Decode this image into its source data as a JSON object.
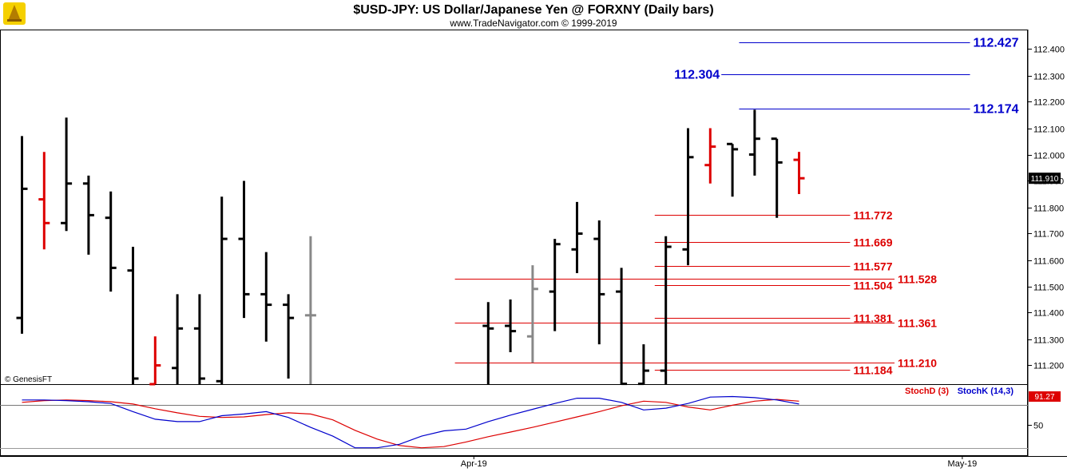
{
  "header": {
    "title": "$USD-JPY:  US Dollar/Japanese Yen @ FORXNY  (Daily bars)",
    "subtitle": "www.TradeNavigator.com © 1999-2019"
  },
  "watermark": "© GenesisFT",
  "colors": {
    "up_bar": "#000000",
    "down_bar": "#dd0000",
    "neutral_bar": "#888888",
    "blue_level": "#0000cc",
    "red_level": "#dd0000",
    "stoch_d": "#dd0000",
    "stoch_k": "#0000cc"
  },
  "chart_data": {
    "type": "ohlc",
    "title": "$USD-JPY:  US Dollar/Japanese Yen @ FORXNY  (Daily bars)",
    "ylim": [
      111.1,
      112.46
    ],
    "y_ticks": [
      "111.200",
      "111.300",
      "111.400",
      "111.500",
      "111.600",
      "111.700",
      "111.800",
      "111.900",
      "112.000",
      "112.100",
      "112.200",
      "112.300",
      "112.400"
    ],
    "x_ticks": [
      {
        "label": "Apr-19",
        "bar": 21
      },
      {
        "label": "May-19",
        "bar": 43
      }
    ],
    "last_price": "111.910",
    "bars": [
      {
        "x": 0,
        "o": 111.38,
        "h": 112.07,
        "l": 111.32,
        "c": 111.87,
        "color": "up"
      },
      {
        "x": 1,
        "o": 111.83,
        "h": 112.01,
        "l": 111.64,
        "c": 111.74,
        "color": "down"
      },
      {
        "x": 2,
        "o": 111.74,
        "h": 112.14,
        "l": 111.71,
        "c": 111.89,
        "color": "up"
      },
      {
        "x": 3,
        "o": 111.89,
        "h": 111.92,
        "l": 111.62,
        "c": 111.77,
        "color": "up"
      },
      {
        "x": 4,
        "o": 111.76,
        "h": 111.86,
        "l": 111.48,
        "c": 111.57,
        "color": "up"
      },
      {
        "x": 5,
        "o": 111.56,
        "h": 111.65,
        "l": 111.1,
        "c": 111.15,
        "color": "up"
      },
      {
        "x": 6,
        "o": 111.12,
        "h": 111.31,
        "l": 111.1,
        "c": 111.2,
        "color": "down"
      },
      {
        "x": 7,
        "o": 111.19,
        "h": 111.47,
        "l": 111.1,
        "c": 111.34,
        "color": "up"
      },
      {
        "x": 8,
        "o": 111.34,
        "h": 111.47,
        "l": 111.1,
        "c": 111.15,
        "color": "up"
      },
      {
        "x": 9,
        "o": 111.14,
        "h": 111.84,
        "l": 111.1,
        "c": 111.68,
        "color": "up"
      },
      {
        "x": 10,
        "o": 111.68,
        "h": 111.9,
        "l": 111.38,
        "c": 111.47,
        "color": "up"
      },
      {
        "x": 11,
        "o": 111.47,
        "h": 111.63,
        "l": 111.29,
        "c": 111.43,
        "color": "up"
      },
      {
        "x": 12,
        "o": 111.43,
        "h": 111.47,
        "l": 111.15,
        "c": 111.38,
        "color": "up"
      },
      {
        "x": 13,
        "o": 111.39,
        "h": 111.69,
        "l": 111.1,
        "c": 111.39,
        "color": "neutral"
      },
      {
        "x": 21,
        "o": 111.35,
        "h": 111.44,
        "l": 111.1,
        "c": 111.34,
        "color": "up"
      },
      {
        "x": 22,
        "o": 111.35,
        "h": 111.45,
        "l": 111.25,
        "c": 111.33,
        "color": "up"
      },
      {
        "x": 23,
        "o": 111.31,
        "h": 111.58,
        "l": 111.21,
        "c": 111.49,
        "color": "neutral"
      },
      {
        "x": 24,
        "o": 111.48,
        "h": 111.68,
        "l": 111.33,
        "c": 111.66,
        "color": "up"
      },
      {
        "x": 25,
        "o": 111.64,
        "h": 111.82,
        "l": 111.55,
        "c": 111.7,
        "color": "up"
      },
      {
        "x": 26,
        "o": 111.68,
        "h": 111.75,
        "l": 111.28,
        "c": 111.47,
        "color": "up"
      },
      {
        "x": 27,
        "o": 111.48,
        "h": 111.57,
        "l": 111.1,
        "c": 111.13,
        "color": "up"
      },
      {
        "x": 28,
        "o": 111.13,
        "h": 111.28,
        "l": 111.1,
        "c": 111.18,
        "color": "up"
      },
      {
        "x": 29,
        "o": 111.18,
        "h": 111.69,
        "l": 111.1,
        "c": 111.65,
        "color": "up"
      },
      {
        "x": 30,
        "o": 111.64,
        "h": 112.1,
        "l": 111.58,
        "c": 111.99,
        "color": "up"
      },
      {
        "x": 31,
        "o": 111.96,
        "h": 112.1,
        "l": 111.89,
        "c": 112.03,
        "color": "down"
      },
      {
        "x": 32,
        "o": 112.04,
        "h": 112.04,
        "l": 111.84,
        "c": 112.02,
        "color": "up"
      },
      {
        "x": 33,
        "o": 112.0,
        "h": 112.17,
        "l": 111.92,
        "c": 112.06,
        "color": "up"
      },
      {
        "x": 34,
        "o": 112.06,
        "h": 112.06,
        "l": 111.76,
        "c": 111.97,
        "color": "up"
      },
      {
        "x": 35,
        "o": 111.98,
        "h": 112.01,
        "l": 111.85,
        "c": 111.91,
        "color": "down"
      }
    ],
    "levels": [
      {
        "label": "112.427",
        "value": 112.427,
        "color": "blue",
        "x_from_bar": 32.3,
        "x_to_bar": 42.7,
        "label_side": "right"
      },
      {
        "label": "112.304",
        "value": 112.304,
        "color": "blue",
        "x_from_bar": 31.5,
        "x_to_bar": 42.7,
        "label_side": "left"
      },
      {
        "label": "112.174",
        "value": 112.174,
        "color": "blue",
        "x_from_bar": 32.3,
        "x_to_bar": 42.7,
        "label_side": "right"
      },
      {
        "label": "111.772",
        "value": 111.772,
        "color": "red",
        "x_from_bar": 28.5,
        "x_to_bar": 37.3,
        "label_side": "right"
      },
      {
        "label": "111.669",
        "value": 111.669,
        "color": "red",
        "x_from_bar": 28.5,
        "x_to_bar": 37.3,
        "label_side": "right"
      },
      {
        "label": "111.577",
        "value": 111.577,
        "color": "red",
        "x_from_bar": 28.5,
        "x_to_bar": 37.3,
        "label_side": "right"
      },
      {
        "label": "111.528",
        "value": 111.528,
        "color": "red",
        "x_from_bar": 19.5,
        "x_to_bar": 39.3,
        "label_side": "right"
      },
      {
        "label": "111.504",
        "value": 111.504,
        "color": "red",
        "x_from_bar": 28.5,
        "x_to_bar": 37.3,
        "label_side": "right"
      },
      {
        "label": "111.381",
        "value": 111.381,
        "color": "red",
        "x_from_bar": 28.5,
        "x_to_bar": 37.3,
        "label_side": "right"
      },
      {
        "label": "111.361",
        "value": 111.361,
        "color": "red",
        "x_from_bar": 19.5,
        "x_to_bar": 39.3,
        "label_side": "right"
      },
      {
        "label": "111.210",
        "value": 111.21,
        "color": "red",
        "x_from_bar": 19.5,
        "x_to_bar": 39.3,
        "label_side": "right"
      },
      {
        "label": "111.184",
        "value": 111.184,
        "color": "red",
        "x_from_bar": 28.5,
        "x_to_bar": 37.3,
        "label_side": "right"
      }
    ],
    "stochastic": {
      "ylim": [
        0,
        100
      ],
      "y_ticks": [
        "50"
      ],
      "series": [
        {
          "name": "StochD (3)",
          "color": "red",
          "x": [
            0,
            1,
            2,
            3,
            4,
            5,
            6,
            7,
            8,
            9,
            10,
            11,
            12,
            13,
            14,
            15,
            16,
            17,
            18,
            19,
            20,
            21,
            22,
            23,
            24,
            25,
            26,
            27,
            28,
            29,
            30,
            31,
            32,
            33,
            34,
            35
          ],
          "values": [
            88,
            91,
            92,
            91,
            89,
            85,
            77,
            70,
            64,
            62,
            63,
            67,
            70,
            68,
            58,
            40,
            25,
            14,
            10,
            12,
            20,
            29,
            37,
            45,
            54,
            63,
            72,
            82,
            90,
            88,
            80,
            75,
            83,
            90,
            93,
            90
          ]
        },
        {
          "name": "StochK (14,3)",
          "color": "blue",
          "x": [
            0,
            1,
            2,
            3,
            4,
            5,
            6,
            7,
            8,
            9,
            10,
            11,
            12,
            13,
            14,
            15,
            16,
            17,
            18,
            19,
            20,
            21,
            22,
            23,
            24,
            25,
            26,
            27,
            28,
            29,
            30,
            31,
            32,
            33,
            34,
            35
          ],
          "values": [
            92,
            92,
            91,
            89,
            86,
            72,
            59,
            55,
            55,
            65,
            68,
            72,
            62,
            45,
            30,
            10,
            10,
            16,
            30,
            39,
            42,
            55,
            66,
            76,
            86,
            95,
            95,
            88,
            75,
            78,
            86,
            97,
            98,
            96,
            92,
            85
          ]
        }
      ],
      "last_value": "91.27"
    }
  }
}
